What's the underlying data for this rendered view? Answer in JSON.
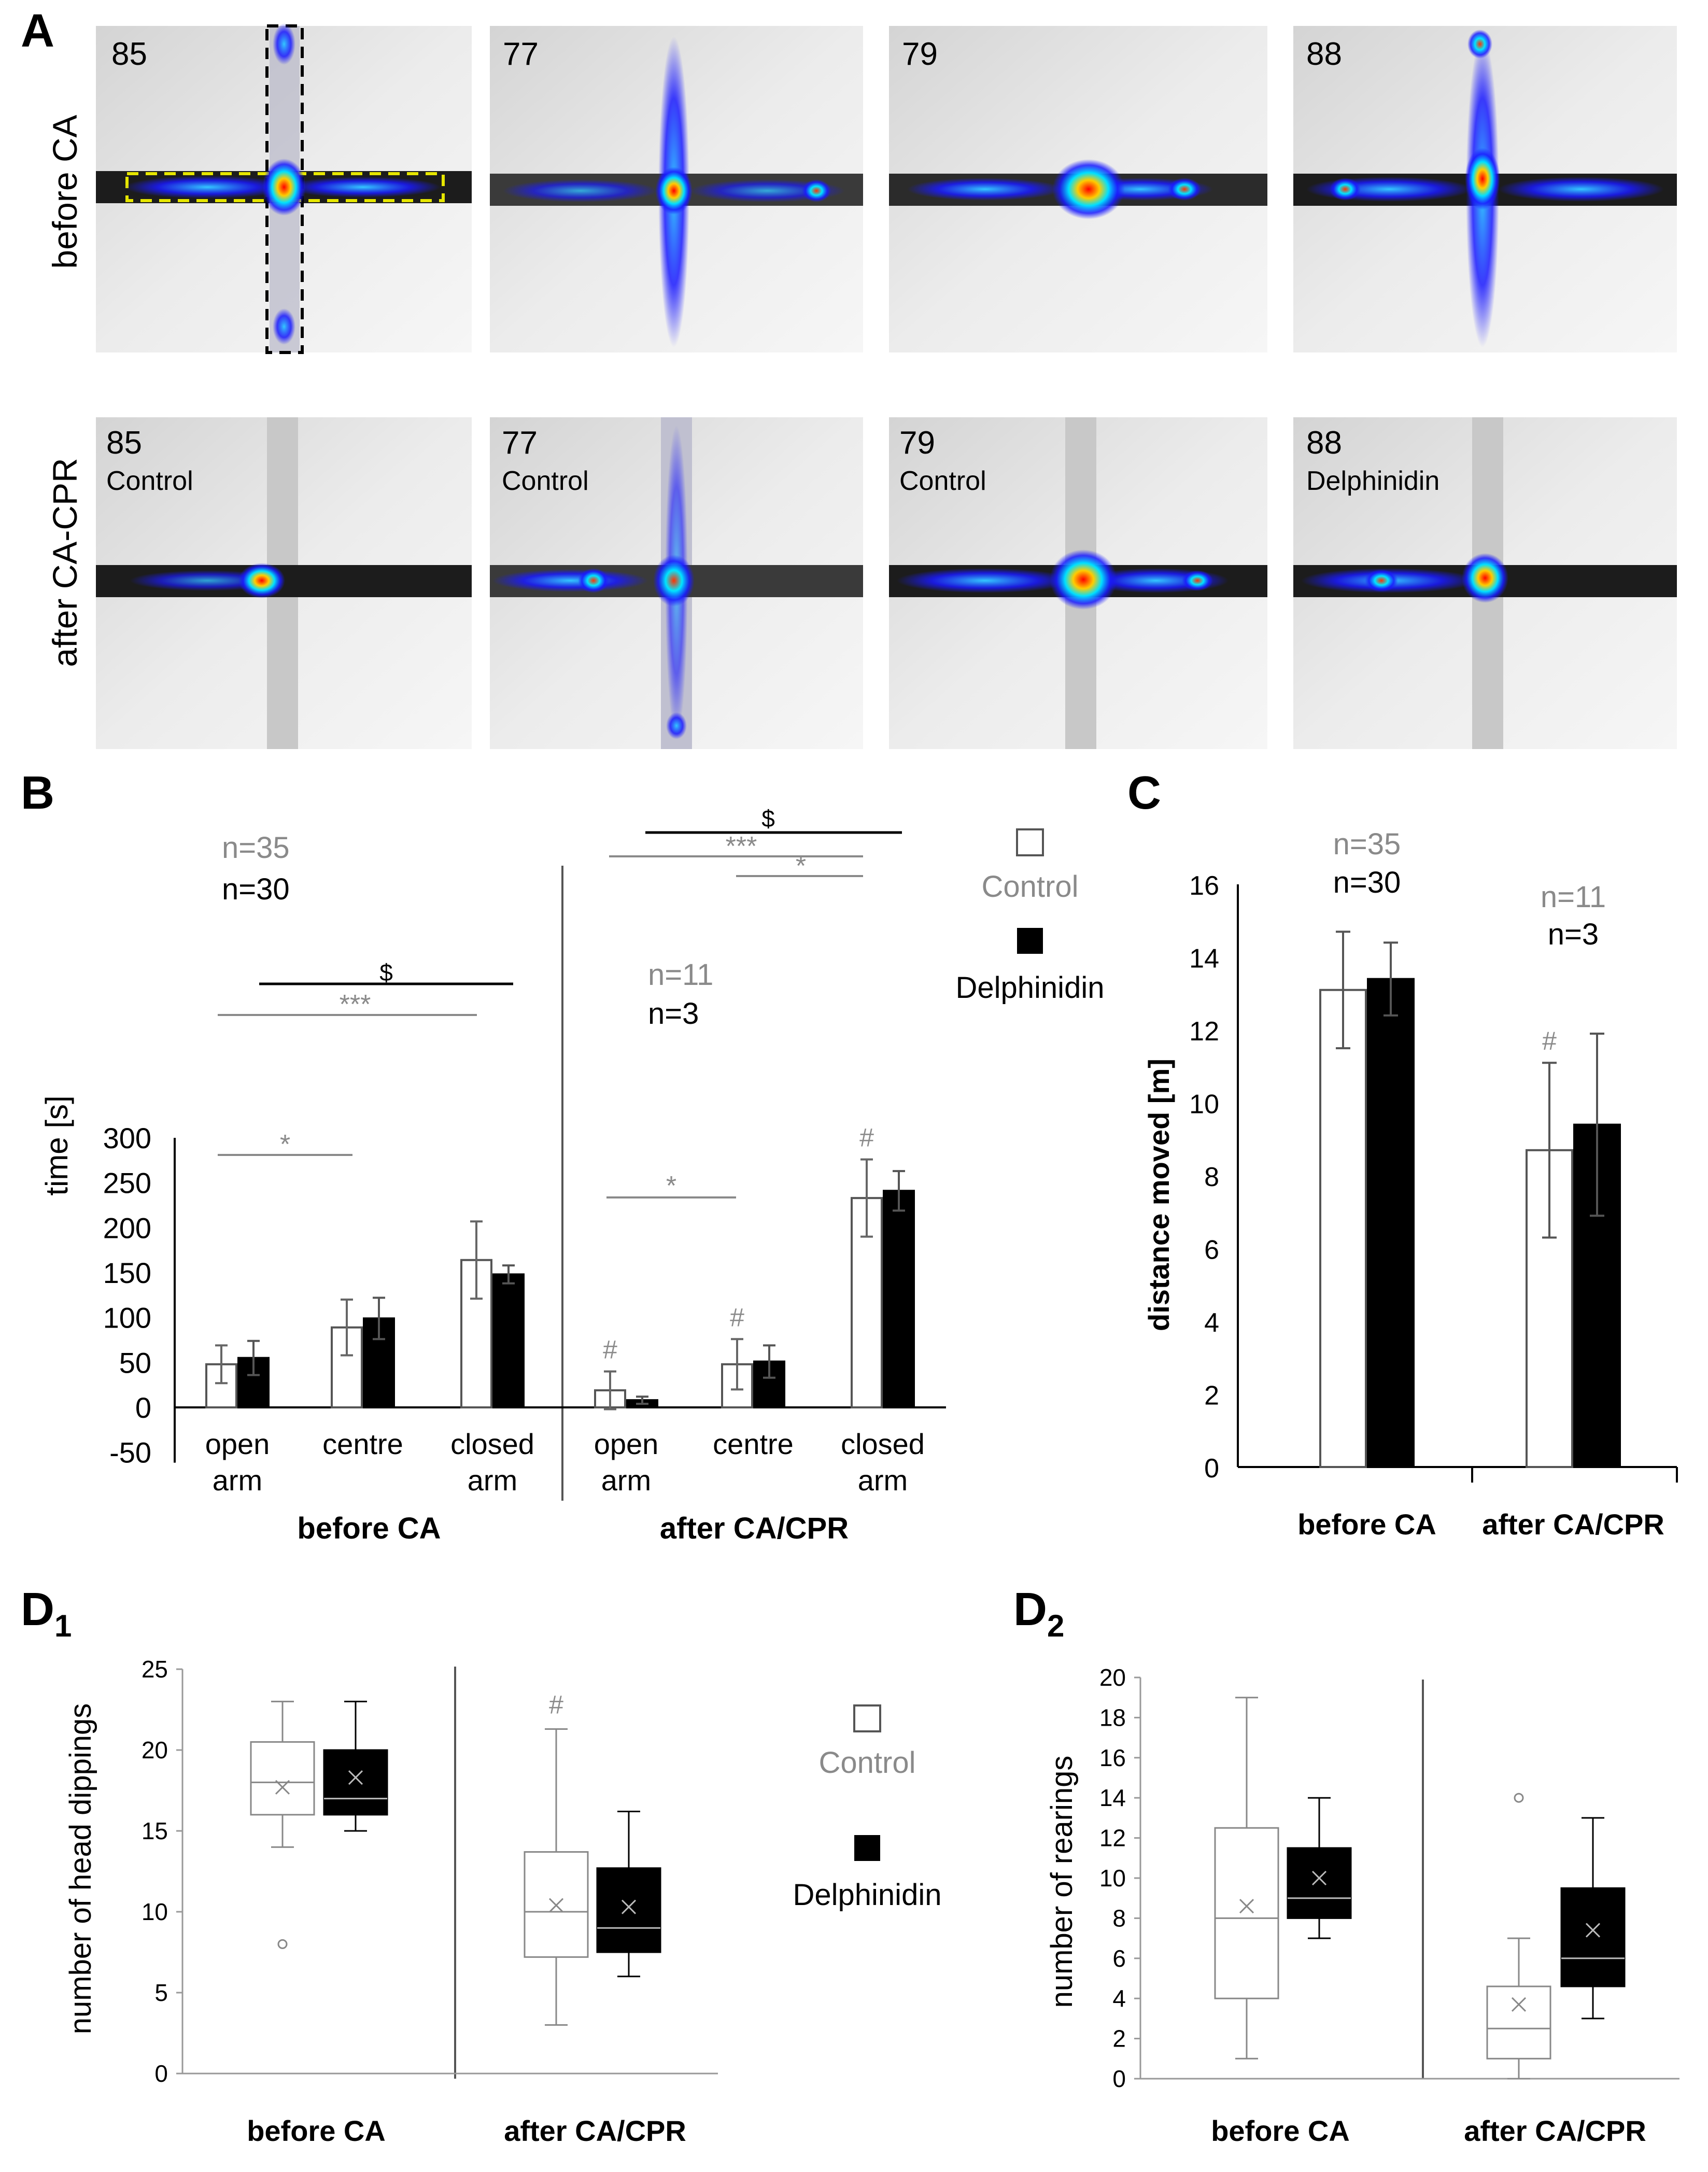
{
  "panel_letters": {
    "a": "A",
    "b": "B",
    "c": "C",
    "d1": "D",
    "d1_sub": "1",
    "d2": "D",
    "d2_sub": "2"
  },
  "panel_a": {
    "row_labels": [
      "before CA",
      "after CA-CPR"
    ],
    "top_row": [
      "85",
      "77",
      "79",
      "88"
    ],
    "bottom_row": [
      {
        "id": "85",
        "group": "Control"
      },
      {
        "id": "77",
        "group": "Control"
      },
      {
        "id": "79",
        "group": "Control"
      },
      {
        "id": "88",
        "group": "Delphinidin"
      }
    ]
  },
  "legend": {
    "control": "Control",
    "delphinidin": "Delphinidin"
  },
  "colors": {
    "control_fill": "#ffffff",
    "delphinidin_fill": "#000000",
    "gray_text": "#8a8a8a",
    "heat_low": "#1a1aff",
    "heat_high": "#ff0000"
  },
  "chart_data": [
    {
      "panel": "B",
      "type": "bar",
      "ylabel": "time [s]",
      "ylim": [
        -50,
        300
      ],
      "yticks": [
        "-50",
        "0",
        "50",
        "100",
        "150",
        "200",
        "250",
        "300"
      ],
      "groups": [
        "before CA",
        "after CA/CPR"
      ],
      "category_labels": [
        [
          "open",
          "arm"
        ],
        [
          "centre",
          ""
        ],
        [
          "closed",
          "arm"
        ],
        [
          "open",
          "arm"
        ],
        [
          "centre",
          ""
        ],
        [
          "closed",
          "arm"
        ]
      ],
      "series": [
        {
          "name": "Control",
          "values": [
            48,
            89,
            164,
            19,
            48,
            233
          ],
          "errors": [
            21,
            31,
            43,
            21,
            28,
            43
          ]
        },
        {
          "name": "Delphinidin",
          "values": [
            55,
            99,
            148,
            8,
            51,
            241
          ],
          "errors": [
            19,
            23,
            10,
            4,
            18,
            22
          ]
        }
      ],
      "n_labels": {
        "before_control": "n=35",
        "before_delphinidin": "n=30",
        "after_control": "n=11",
        "after_delphinidin": "n=3"
      },
      "annotations": {
        "star1": "*",
        "star3": "***",
        "dollar": "$",
        "hash": "#"
      }
    },
    {
      "panel": "C",
      "type": "bar",
      "ylabel": "distance moved [m]",
      "ylim": [
        0,
        16
      ],
      "yticks": [
        "0",
        "2",
        "4",
        "6",
        "8",
        "10",
        "12",
        "14",
        "16"
      ],
      "categories": [
        "before CA",
        "after CA/CPR"
      ],
      "series": [
        {
          "name": "Control",
          "values": [
            13.1,
            8.7
          ],
          "errors": [
            1.6,
            2.4
          ]
        },
        {
          "name": "Delphinidin",
          "values": [
            13.4,
            9.4
          ],
          "errors": [
            1.0,
            2.5
          ]
        }
      ],
      "n_labels": {
        "before_control": "n=35",
        "before_delphinidin": "n=30",
        "after_control": "n=11",
        "after_delphinidin": "n=3"
      },
      "annotations": {
        "hash": "#"
      }
    },
    {
      "panel": "D1",
      "type": "box",
      "ylabel": "number of head dippings",
      "ylim": [
        0,
        25
      ],
      "yticks": [
        "0",
        "5",
        "10",
        "15",
        "20",
        "25"
      ],
      "categories": [
        "before CA",
        "after CA/CPR"
      ],
      "boxes": [
        {
          "series": "Control",
          "group": "before CA",
          "min": 14,
          "q1": 16,
          "median": 18,
          "q3": 20.5,
          "max": 23,
          "mean": 17.7,
          "outliers": [
            8
          ]
        },
        {
          "series": "Delphinidin",
          "group": "before CA",
          "min": 15,
          "q1": 16,
          "median": 17,
          "q3": 20,
          "max": 23,
          "mean": 18.3,
          "outliers": []
        },
        {
          "series": "Control",
          "group": "after CA/CPR",
          "min": 3,
          "q1": 7.2,
          "median": 10,
          "q3": 13.7,
          "max": 21.3,
          "mean": 10.4,
          "outliers": []
        },
        {
          "series": "Delphinidin",
          "group": "after CA/CPR",
          "min": 6,
          "q1": 7.5,
          "median": 9,
          "q3": 12.7,
          "max": 16.2,
          "mean": 10.3,
          "outliers": []
        }
      ],
      "annotations": {
        "hash": "#"
      }
    },
    {
      "panel": "D2",
      "type": "box",
      "ylabel": "number of rearings",
      "ylim": [
        0,
        20
      ],
      "yticks": [
        "0",
        "2",
        "4",
        "6",
        "8",
        "10",
        "12",
        "14",
        "16",
        "18",
        "20"
      ],
      "categories": [
        "before CA",
        "after CA/CPR"
      ],
      "boxes": [
        {
          "series": "Control",
          "group": "before CA",
          "min": 1,
          "q1": 4,
          "median": 8,
          "q3": 12.5,
          "max": 19,
          "mean": 8.6,
          "outliers": []
        },
        {
          "series": "Delphinidin",
          "group": "before CA",
          "min": 7,
          "q1": 8,
          "median": 9,
          "q3": 11.5,
          "max": 14,
          "mean": 10,
          "outliers": []
        },
        {
          "series": "Control",
          "group": "after CA/CPR",
          "min": 0,
          "q1": 1,
          "median": 2.5,
          "q3": 4.6,
          "max": 7,
          "mean": 3.7,
          "outliers": [
            14
          ]
        },
        {
          "series": "Delphinidin",
          "group": "after CA/CPR",
          "min": 3,
          "q1": 4.6,
          "median": 6,
          "q3": 9.5,
          "max": 13,
          "mean": 7.4,
          "outliers": []
        }
      ]
    }
  ]
}
